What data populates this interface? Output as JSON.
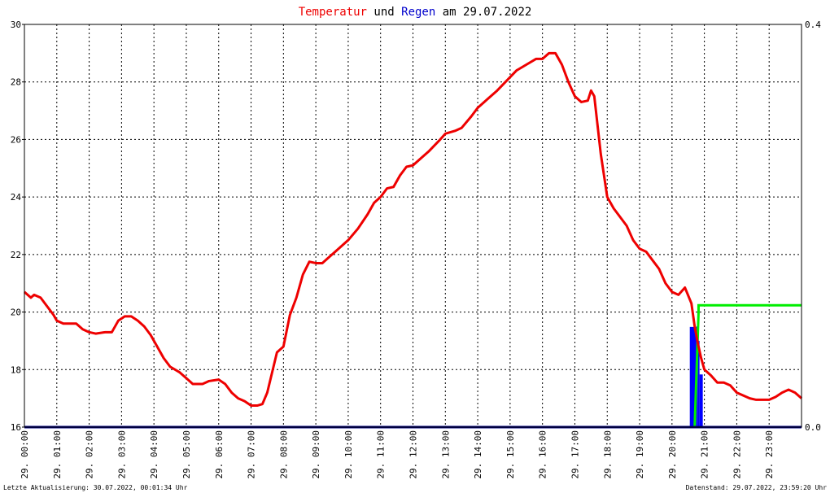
{
  "title": {
    "part1": "Temperatur",
    "part2": " und ",
    "part3": "Regen",
    "part4": " am 29.07.2022",
    "color1": "#ee0000",
    "color3": "#0000cc"
  },
  "footer": {
    "left": "Letzte Aktualisierung: 30.07.2022, 00:01:34 Uhr",
    "right": "Datenstand: 29.07.2022, 23:59:20 Uhr"
  },
  "chart_data": {
    "type": "line",
    "x_unit": "hour of day",
    "xlim": [
      0,
      24
    ],
    "ylim": [
      16,
      30
    ],
    "y_ticks": [
      "16",
      "18",
      "20",
      "22",
      "24",
      "26",
      "28",
      "30"
    ],
    "y2lim": [
      0.0,
      0.4
    ],
    "y2_ticks": [
      "0.0",
      "0.4"
    ],
    "x_ticks": [
      "29. 00:00",
      "29. 01:00",
      "29. 02:00",
      "29. 03:00",
      "29. 04:00",
      "29. 05:00",
      "29. 06:00",
      "29. 07:00",
      "29. 08:00",
      "29. 09:00",
      "29. 10:00",
      "29. 11:00",
      "29. 12:00",
      "29. 13:00",
      "29. 14:00",
      "29. 15:00",
      "29. 16:00",
      "29. 17:00",
      "29. 18:00",
      "29. 19:00",
      "29. 20:00",
      "29. 21:00",
      "29. 22:00",
      "29. 23:00"
    ],
    "grid": true,
    "temperature": {
      "color": "#ee0000",
      "x": [
        0.0,
        0.2,
        0.3,
        0.5,
        0.7,
        0.9,
        1.0,
        1.2,
        1.4,
        1.6,
        1.8,
        2.0,
        2.2,
        2.5,
        2.7,
        2.9,
        3.1,
        3.3,
        3.5,
        3.7,
        3.9,
        4.1,
        4.3,
        4.5,
        4.8,
        5.0,
        5.2,
        5.5,
        5.7,
        6.0,
        6.2,
        6.4,
        6.6,
        6.8,
        7.0,
        7.2,
        7.35,
        7.5,
        7.65,
        7.8,
        8.0,
        8.2,
        8.4,
        8.6,
        8.8,
        9.0,
        9.2,
        9.4,
        9.6,
        9.8,
        10.0,
        10.3,
        10.6,
        10.8,
        11.0,
        11.2,
        11.4,
        11.6,
        11.8,
        12.0,
        12.3,
        12.5,
        12.8,
        13.0,
        13.3,
        13.5,
        13.8,
        14.0,
        14.3,
        14.6,
        14.9,
        15.2,
        15.5,
        15.8,
        16.0,
        16.2,
        16.4,
        16.6,
        16.8,
        17.0,
        17.2,
        17.4,
        17.5,
        17.6,
        17.8,
        18.0,
        18.2,
        18.4,
        18.6,
        18.8,
        19.0,
        19.2,
        19.4,
        19.6,
        19.8,
        20.0,
        20.2,
        20.4,
        20.6,
        20.7,
        20.8,
        20.9,
        21.0,
        21.2,
        21.4,
        21.6,
        21.8,
        22.0,
        22.2,
        22.4,
        22.6,
        22.8,
        23.0,
        23.2,
        23.4,
        23.6,
        23.8,
        24.0
      ],
      "y": [
        20.7,
        20.5,
        20.6,
        20.5,
        20.2,
        19.9,
        19.7,
        19.6,
        19.6,
        19.6,
        19.4,
        19.3,
        19.25,
        19.3,
        19.3,
        19.7,
        19.85,
        19.85,
        19.7,
        19.5,
        19.2,
        18.8,
        18.4,
        18.1,
        17.9,
        17.7,
        17.5,
        17.5,
        17.6,
        17.65,
        17.5,
        17.2,
        17.0,
        16.9,
        16.75,
        16.75,
        16.8,
        17.2,
        17.9,
        18.6,
        18.8,
        19.9,
        20.5,
        21.3,
        21.75,
        21.7,
        21.7,
        21.9,
        22.1,
        22.3,
        22.5,
        22.9,
        23.4,
        23.8,
        24.0,
        24.3,
        24.35,
        24.75,
        25.05,
        25.1,
        25.4,
        25.6,
        25.95,
        26.2,
        26.3,
        26.4,
        26.8,
        27.1,
        27.4,
        27.7,
        28.05,
        28.4,
        28.6,
        28.8,
        28.8,
        29.0,
        29.0,
        28.6,
        28.0,
        27.5,
        27.3,
        27.35,
        27.7,
        27.5,
        25.5,
        24.0,
        23.6,
        23.3,
        23.0,
        22.5,
        22.2,
        22.1,
        21.8,
        21.5,
        21.0,
        20.7,
        20.6,
        20.85,
        20.3,
        19.5,
        18.9,
        18.4,
        18.0,
        17.8,
        17.55,
        17.55,
        17.45,
        17.2,
        17.1,
        17.0,
        16.95,
        16.95,
        16.95,
        17.05,
        17.2,
        17.3,
        17.2,
        17.0
      ]
    },
    "rain": {
      "color": "#0000ff",
      "bars": [
        {
          "x0": 20.55,
          "x1": 20.75,
          "value": 0.0995
        },
        {
          "x0": 20.75,
          "x1": 20.8,
          "value": 0.1
        },
        {
          "x0": 20.8,
          "x1": 20.85,
          "value": 0.0857
        },
        {
          "x0": 20.85,
          "x1": 20.95,
          "value": 0.0523
        }
      ]
    },
    "rain_total": {
      "color": "#00ee00",
      "x": [
        20.7,
        20.82,
        20.82,
        24.0
      ],
      "value": [
        0.0,
        0.114,
        0.121,
        0.121
      ]
    },
    "baseline": {
      "color": "#000080"
    }
  }
}
